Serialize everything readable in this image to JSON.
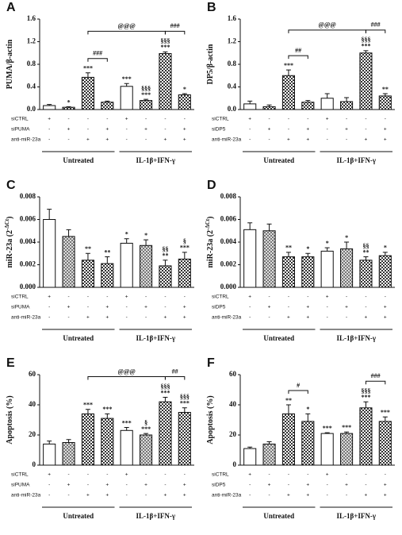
{
  "chart_data": [
    {
      "type": "bar",
      "panel": "A",
      "ylabel": "PUMA/β-actin",
      "ylim": [
        0,
        1.6
      ],
      "yticks": [
        {
          "value": 0,
          "label": "0.0"
        },
        {
          "value": 0.4,
          "label": "0.4"
        },
        {
          "value": 0.8,
          "label": "0.8"
        },
        {
          "value": 1.2,
          "label": "1.2"
        },
        {
          "value": 1.6,
          "label": "1.6"
        }
      ],
      "values": [
        0.07,
        0.04,
        0.57,
        0.13,
        0.41,
        0.16,
        0.99,
        0.26
      ],
      "errors": [
        0.02,
        0.01,
        0.08,
        0.02,
        0.05,
        0.02,
        0.03,
        0.02
      ],
      "styles": [
        "open",
        "hatched",
        "hatched",
        "hatched",
        "open",
        "hatched",
        "hatched",
        "hatched"
      ],
      "annotations": [
        [],
        [
          "*"
        ],
        [
          "***"
        ],
        [],
        [
          "***"
        ],
        [
          "§§§",
          "***"
        ],
        [
          "§§§",
          "***"
        ],
        [
          "*"
        ]
      ],
      "brackets": [
        {
          "label": "###",
          "from": 2,
          "to": 3
        },
        {
          "label": "###",
          "from": 6,
          "to": 7
        },
        {
          "label": "@@@",
          "from": 2,
          "to": 6
        }
      ],
      "rows": [
        {
          "name": "siCTRL",
          "marks": [
            "+",
            "-",
            "-",
            "-",
            "+",
            "-",
            "-",
            "-"
          ]
        },
        {
          "name": "siPUMA",
          "marks": [
            "-",
            "+",
            "-",
            "+",
            "-",
            "+",
            "-",
            "+"
          ]
        },
        {
          "name": "anti-miR-23a",
          "marks": [
            "-",
            "-",
            "+",
            "+",
            "-",
            "-",
            "+",
            "+"
          ]
        }
      ],
      "groups": [
        "Untreated",
        "IL-1β+IFN-γ"
      ]
    },
    {
      "type": "bar",
      "panel": "B",
      "ylabel": "DP5/β-actin",
      "ylim": [
        0,
        1.6
      ],
      "yticks": [
        {
          "value": 0,
          "label": "0.0"
        },
        {
          "value": 0.4,
          "label": "0.4"
        },
        {
          "value": 0.8,
          "label": "0.8"
        },
        {
          "value": 1.2,
          "label": "1.2"
        },
        {
          "value": 1.6,
          "label": "1.6"
        }
      ],
      "values": [
        0.1,
        0.05,
        0.6,
        0.13,
        0.2,
        0.14,
        1.0,
        0.24
      ],
      "errors": [
        0.05,
        0.03,
        0.1,
        0.03,
        0.08,
        0.07,
        0.04,
        0.04
      ],
      "styles": [
        "open",
        "hatched",
        "hatched",
        "hatched",
        "open",
        "hatched",
        "hatched",
        "hatched"
      ],
      "annotations": [
        [],
        [],
        [
          "***"
        ],
        [],
        [],
        [],
        [
          "§§§",
          "***"
        ],
        [
          "**"
        ]
      ],
      "brackets": [
        {
          "label": "##",
          "from": 2,
          "to": 3
        },
        {
          "label": "###",
          "from": 6,
          "to": 7
        },
        {
          "label": "@@@",
          "from": 2,
          "to": 6
        }
      ],
      "rows": [
        {
          "name": "siCTRL",
          "marks": [
            "+",
            "-",
            "-",
            "-",
            "+",
            "-",
            "-",
            "-"
          ]
        },
        {
          "name": "siDP5",
          "marks": [
            "-",
            "+",
            "-",
            "+",
            "-",
            "+",
            "-",
            "+"
          ]
        },
        {
          "name": "anti-miR-23a",
          "marks": [
            "-",
            "-",
            "+",
            "+",
            "-",
            "-",
            "+",
            "+"
          ]
        }
      ],
      "groups": [
        "Untreated",
        "IL-1β+IFN-γ"
      ]
    },
    {
      "type": "bar",
      "panel": "C",
      "ylabel": "miR-23a (2",
      "ylabel_sup": "-ΔCt",
      "ylabel_end": ")",
      "ylim": [
        0,
        0.008
      ],
      "yticks": [
        {
          "value": 0,
          "label": "0.000"
        },
        {
          "value": 0.002,
          "label": "0.002"
        },
        {
          "value": 0.004,
          "label": "0.004"
        },
        {
          "value": 0.006,
          "label": "0.006"
        },
        {
          "value": 0.008,
          "label": "0.008"
        }
      ],
      "values": [
        0.006,
        0.0045,
        0.0024,
        0.0021,
        0.0039,
        0.0037,
        0.0019,
        0.0025
      ],
      "errors": [
        0.0009,
        0.0006,
        0.0006,
        0.0006,
        0.0004,
        0.0005,
        0.0005,
        0.0006
      ],
      "styles": [
        "open",
        "light",
        "hatched",
        "hatched",
        "open",
        "light",
        "hatched",
        "hatched"
      ],
      "annotations": [
        [],
        [],
        [
          "**"
        ],
        [
          "**"
        ],
        [
          "*"
        ],
        [
          "*"
        ],
        [
          "§§",
          "**"
        ],
        [
          "§",
          "***"
        ]
      ],
      "brackets": [],
      "rows": [
        {
          "name": "siCTRL",
          "marks": [
            "+",
            "-",
            "-",
            "-",
            "+",
            "-",
            "-",
            "-"
          ]
        },
        {
          "name": "siPUMA",
          "marks": [
            "-",
            "+",
            "-",
            "+",
            "-",
            "+",
            "-",
            "+"
          ]
        },
        {
          "name": "anti-miR-23a",
          "marks": [
            "-",
            "-",
            "+",
            "+",
            "-",
            "-",
            "+",
            "+"
          ]
        }
      ],
      "groups": [
        "Untreated",
        "IL-1β+IFN-γ"
      ]
    },
    {
      "type": "bar",
      "panel": "D",
      "ylabel": "miR-23a (2",
      "ylabel_sup": "-ΔCt",
      "ylabel_end": ")",
      "ylim": [
        0,
        0.008
      ],
      "yticks": [
        {
          "value": 0,
          "label": "0.000"
        },
        {
          "value": 0.002,
          "label": "0.002"
        },
        {
          "value": 0.004,
          "label": "0.004"
        },
        {
          "value": 0.006,
          "label": "0.006"
        },
        {
          "value": 0.008,
          "label": "0.008"
        }
      ],
      "values": [
        0.0051,
        0.005,
        0.0027,
        0.0027,
        0.0032,
        0.0034,
        0.0024,
        0.0028
      ],
      "errors": [
        0.0006,
        0.0006,
        0.0004,
        0.0003,
        0.0003,
        0.0006,
        0.0003,
        0.0003
      ],
      "styles": [
        "open",
        "light",
        "hatched",
        "hatched",
        "open",
        "light",
        "hatched",
        "hatched"
      ],
      "annotations": [
        [],
        [],
        [
          "**"
        ],
        [
          "*"
        ],
        [
          "*"
        ],
        [
          "*"
        ],
        [
          "§§",
          "**"
        ],
        [
          "*"
        ]
      ],
      "brackets": [],
      "rows": [
        {
          "name": "siCTRL",
          "marks": [
            "+",
            "-",
            "-",
            "-",
            "+",
            "-",
            "-",
            "-"
          ]
        },
        {
          "name": "siDP5",
          "marks": [
            "-",
            "+",
            "-",
            "+",
            "-",
            "+",
            "-",
            "+"
          ]
        },
        {
          "name": "anti-miR-23a",
          "marks": [
            "-",
            "-",
            "+",
            "+",
            "-",
            "-",
            "+",
            "+"
          ]
        }
      ],
      "groups": [
        "Untreated",
        "IL-1β+IFN-γ"
      ]
    },
    {
      "type": "bar",
      "panel": "E",
      "ylabel": "Apoptosis (%)",
      "ylim": [
        0,
        60
      ],
      "yticks": [
        0,
        20,
        40,
        60
      ],
      "values": [
        14,
        15,
        34,
        31,
        23,
        20,
        42,
        35
      ],
      "errors": [
        2,
        2,
        3,
        3,
        2,
        1,
        3,
        3
      ],
      "styles": [
        "open",
        "light",
        "hatched",
        "hatched",
        "open",
        "light",
        "hatched",
        "hatched"
      ],
      "annotations": [
        [],
        [],
        [
          "***"
        ],
        [
          "***"
        ],
        [
          "***"
        ],
        [
          "§",
          "***"
        ],
        [
          "§§§",
          "***"
        ],
        [
          "§§§",
          "***"
        ]
      ],
      "brackets": [
        {
          "label": "##",
          "from": 6,
          "to": 7
        },
        {
          "label": "@@@",
          "from": 2,
          "to": 6
        }
      ],
      "rows": [
        {
          "name": "siCTRL",
          "marks": [
            "+",
            "-",
            "-",
            "-",
            "+",
            "-",
            "-",
            "-"
          ]
        },
        {
          "name": "siPUMA",
          "marks": [
            "-",
            "+",
            "-",
            "+",
            "-",
            "+",
            "-",
            "+"
          ]
        },
        {
          "name": "anti-miR-23a",
          "marks": [
            "-",
            "-",
            "+",
            "+",
            "-",
            "-",
            "+",
            "+"
          ]
        }
      ],
      "groups": [
        "Untreated",
        "IL-1β+IFN-γ"
      ]
    },
    {
      "type": "bar",
      "panel": "F",
      "ylabel": "Apoptosis (%)",
      "ylim": [
        0,
        60
      ],
      "yticks": [
        0,
        20,
        40,
        60
      ],
      "values": [
        11,
        14,
        34,
        29,
        21,
        21,
        38,
        29
      ],
      "errors": [
        1,
        1.5,
        6,
        5,
        0.5,
        1,
        4,
        3
      ],
      "styles": [
        "open",
        "light",
        "hatched",
        "hatched",
        "open",
        "light",
        "hatched",
        "hatched"
      ],
      "annotations": [
        [],
        [],
        [
          "**"
        ],
        [
          "*"
        ],
        [
          "***"
        ],
        [
          "***"
        ],
        [
          "§§§",
          "***"
        ],
        [
          "***"
        ]
      ],
      "brackets": [
        {
          "label": "#",
          "from": 2,
          "to": 3
        },
        {
          "label": "###",
          "from": 6,
          "to": 7
        }
      ],
      "rows": [
        {
          "name": "siCTRL",
          "marks": [
            "+",
            "-",
            "-",
            "-",
            "+",
            "-",
            "-",
            "-"
          ]
        },
        {
          "name": "siDP5",
          "marks": [
            "-",
            "+",
            "-",
            "+",
            "-",
            "+",
            "-",
            "+"
          ]
        },
        {
          "name": "anti-miR-23a",
          "marks": [
            "-",
            "-",
            "+",
            "+",
            "-",
            "-",
            "+",
            "+"
          ]
        }
      ],
      "groups": [
        "Untreated",
        "IL-1β+IFN-γ"
      ]
    }
  ]
}
